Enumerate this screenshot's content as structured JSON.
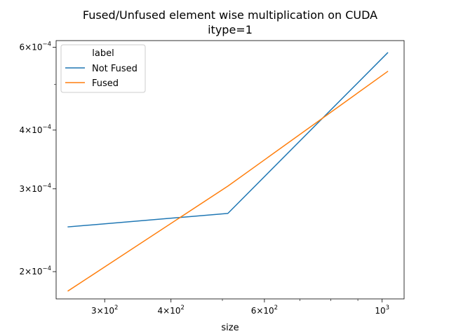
{
  "chart_data": {
    "type": "line",
    "title": "Fused/Unfused element wise multiplication on CUDA",
    "subtitle": "itype=1",
    "xlabel": "size",
    "ylabel": "",
    "xscale": "log",
    "yscale": "log",
    "xlim": [
      243,
      1100
    ],
    "ylim": [
      0.000175,
      0.00062
    ],
    "x": [
      256,
      512,
      1024
    ],
    "series": [
      {
        "name": "Not Fused",
        "color": "#1f77b4",
        "values": [
          0.000249,
          0.000266,
          0.000584
        ]
      },
      {
        "name": "Fused",
        "color": "#ff7f0e",
        "values": [
          0.000182,
          0.000304,
          0.000533
        ]
      }
    ],
    "xticks_major": [
      {
        "value": 300,
        "mantissa": "3",
        "base": "10",
        "exp": "2"
      },
      {
        "value": 400,
        "mantissa": "4",
        "base": "10",
        "exp": "2"
      },
      {
        "value": 600,
        "mantissa": "6",
        "base": "10",
        "exp": "2"
      },
      {
        "value": 1000,
        "mantissa": "",
        "base": "10",
        "exp": "3"
      }
    ],
    "xticks_minor": [
      500,
      700,
      800,
      900
    ],
    "yticks_major": [
      {
        "value": 0.0002,
        "mantissa": "2",
        "base": "10",
        "exp": "−4"
      },
      {
        "value": 0.0003,
        "mantissa": "3",
        "base": "10",
        "exp": "−4"
      },
      {
        "value": 0.0004,
        "mantissa": "4",
        "base": "10",
        "exp": "−4"
      },
      {
        "value": 0.0006,
        "mantissa": "6",
        "base": "10",
        "exp": "−4"
      }
    ],
    "yticks_minor": [
      0.0005
    ],
    "legend": {
      "title": "label",
      "position": "top-left"
    },
    "grid": false
  }
}
